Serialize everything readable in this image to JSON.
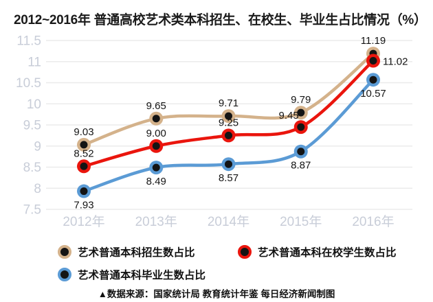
{
  "title": "2012~2016年 普通高校艺术类本科招生、在校生、毕业生占比情况（%）",
  "source_note": "▲数据来源：国家统计局 教育统计年鉴 每日经济新闻制图",
  "colors": {
    "tan_series": "#d4b28b",
    "red_series": "#ea150d",
    "blue_series": "#5b9bd5",
    "marker_center": "#141414",
    "gridline": "#ebebeb",
    "axis_text": "#c8cdd8",
    "data_label": "#141414"
  },
  "chart_data": {
    "type": "line",
    "categories": [
      "2012年",
      "2013年",
      "2014年",
      "2015年",
      "2016年"
    ],
    "series": [
      {
        "name": "艺术普通本科招生数占比",
        "color": "#d4b28b",
        "values": [
          9.03,
          9.65,
          9.71,
          9.79,
          11.19
        ],
        "point_labels": [
          "9.03",
          "9.65",
          "9.71",
          "9.79",
          "11.19"
        ],
        "label_pos": [
          "above",
          "above",
          "above",
          "above",
          "above"
        ]
      },
      {
        "name": "艺术普通本科在校学生数占比",
        "color": "#ea150d",
        "values": [
          8.52,
          9.0,
          9.25,
          9.45,
          11.02
        ],
        "point_labels": [
          "8.52",
          "9.00",
          "9.25",
          "9.45",
          "11.02"
        ],
        "label_pos": [
          "above",
          "above",
          "above",
          "above-left",
          "right"
        ]
      },
      {
        "name": "艺术普通本科毕业生数占比",
        "color": "#5b9bd5",
        "values": [
          7.93,
          8.49,
          8.57,
          8.87,
          10.57
        ],
        "point_labels": [
          "7.93",
          "8.49",
          "8.57",
          "8.87",
          "10.57"
        ],
        "label_pos": [
          "below",
          "below",
          "below",
          "below",
          "below"
        ]
      }
    ],
    "ylim": [
      7.5,
      11.5
    ],
    "ytick_step": 0.5,
    "grid": true,
    "legend_position": "bottom",
    "smooth_lines": true
  }
}
